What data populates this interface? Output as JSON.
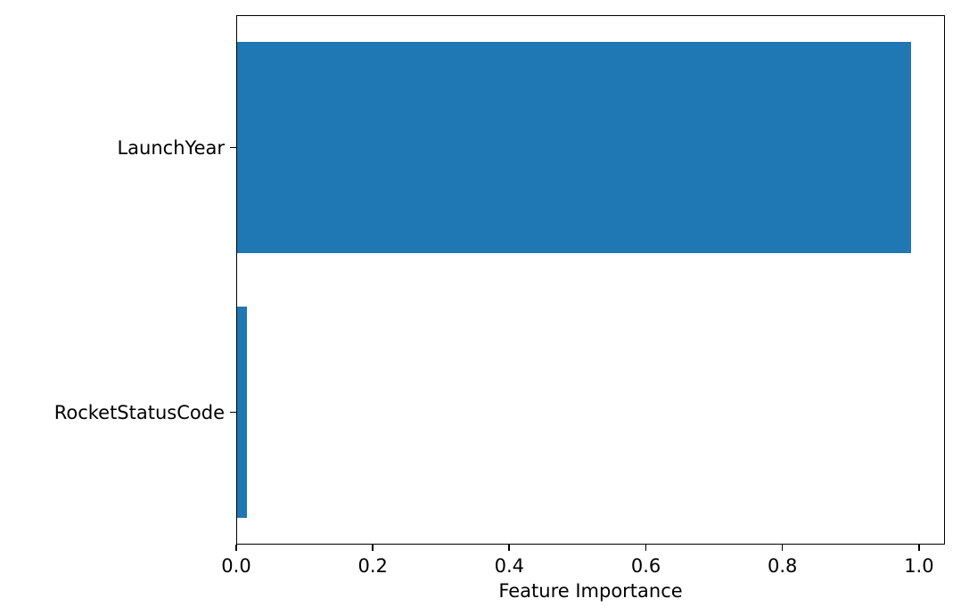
{
  "chart_data": {
    "type": "bar",
    "orientation": "horizontal",
    "title": "",
    "xlabel": "Feature Importance",
    "ylabel": "",
    "categories": [
      "LaunchYear",
      "RocketStatusCode"
    ],
    "values": [
      0.987,
      0.014
    ],
    "xlim": [
      0,
      1.038
    ],
    "xticks": [
      {
        "label": "0.0",
        "value": 0.0
      },
      {
        "label": "0.2",
        "value": 0.2
      },
      {
        "label": "0.4",
        "value": 0.4
      },
      {
        "label": "0.6",
        "value": 0.6
      },
      {
        "label": "0.8",
        "value": 0.8
      },
      {
        "label": "1.0",
        "value": 1.0
      }
    ],
    "bar_height_frac": 0.8,
    "bar_color": "#1f77b4",
    "spine_color": "#000000",
    "text_color": "#000000",
    "background": "#ffffff",
    "grid": false,
    "legend": "none"
  }
}
